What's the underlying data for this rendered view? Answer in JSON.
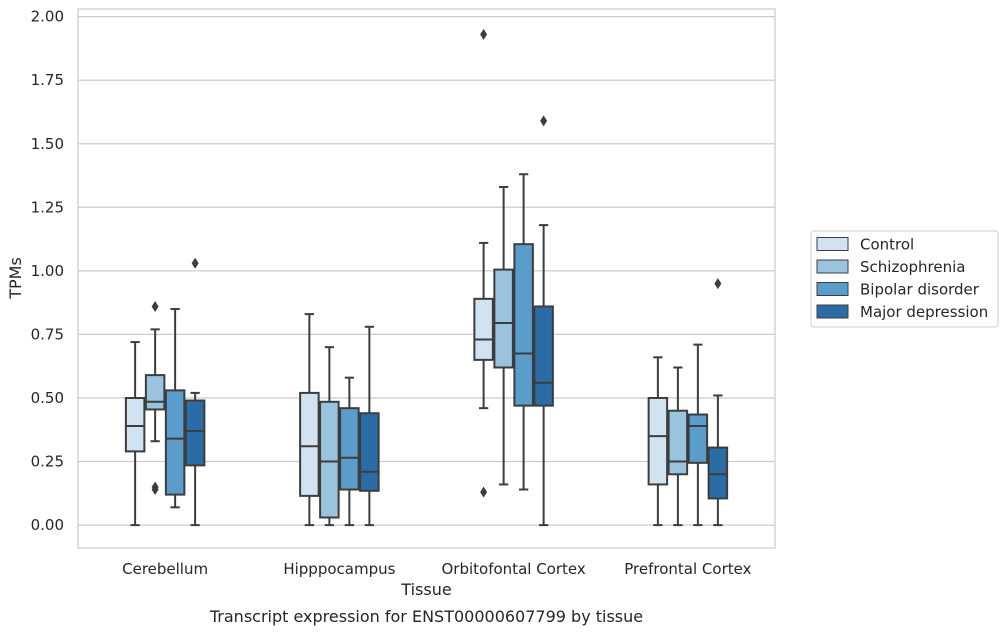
{
  "chart_data": {
    "type": "box",
    "title": "",
    "caption": "Transcript expression for ENST00000607799 by tissue",
    "xlabel": "Tissue",
    "ylabel": "TPMs",
    "ylim": [
      -0.09,
      2.03
    ],
    "yticks": [
      "0.00",
      "0.25",
      "0.50",
      "0.75",
      "1.00",
      "1.25",
      "1.50",
      "1.75",
      "2.00"
    ],
    "grid": "horizontal",
    "legend_position": "right",
    "categories": [
      "Cerebellum",
      "Hipppocampus",
      "Orbitofontal Cortex",
      "Prefrontal Cortex"
    ],
    "series": [
      {
        "name": "Control",
        "color": "#d1e2f1",
        "boxes": [
          {
            "whislo": 0.0,
            "q1": 0.29,
            "med": 0.39,
            "q3": 0.5,
            "whishi": 0.72,
            "fliers": []
          },
          {
            "whislo": 0.0,
            "q1": 0.115,
            "med": 0.31,
            "q3": 0.52,
            "whishi": 0.83,
            "fliers": []
          },
          {
            "whislo": 0.46,
            "q1": 0.65,
            "med": 0.73,
            "q3": 0.89,
            "whishi": 1.11,
            "fliers": [
              1.93,
              0.13
            ]
          },
          {
            "whislo": 0.0,
            "q1": 0.16,
            "med": 0.35,
            "q3": 0.5,
            "whishi": 0.66,
            "fliers": []
          }
        ]
      },
      {
        "name": "Schizophrenia",
        "color": "#9ac4de",
        "boxes": [
          {
            "whislo": 0.33,
            "q1": 0.455,
            "med": 0.485,
            "q3": 0.59,
            "whishi": 0.77,
            "fliers": [
              0.86,
              0.15,
              0.14
            ]
          },
          {
            "whislo": 0.0,
            "q1": 0.03,
            "med": 0.25,
            "q3": 0.485,
            "whishi": 0.7,
            "fliers": []
          },
          {
            "whislo": 0.16,
            "q1": 0.62,
            "med": 0.795,
            "q3": 1.005,
            "whishi": 1.33,
            "fliers": []
          },
          {
            "whislo": 0.0,
            "q1": 0.2,
            "med": 0.25,
            "q3": 0.45,
            "whishi": 0.62,
            "fliers": []
          }
        ]
      },
      {
        "name": "Bipolar disorder",
        "color": "#5a9dcb",
        "boxes": [
          {
            "whislo": 0.07,
            "q1": 0.12,
            "med": 0.34,
            "q3": 0.53,
            "whishi": 0.85,
            "fliers": []
          },
          {
            "whislo": 0.0,
            "q1": 0.14,
            "med": 0.265,
            "q3": 0.46,
            "whishi": 0.58,
            "fliers": []
          },
          {
            "whislo": 0.14,
            "q1": 0.47,
            "med": 0.675,
            "q3": 1.105,
            "whishi": 1.38,
            "fliers": []
          },
          {
            "whislo": 0.0,
            "q1": 0.245,
            "med": 0.39,
            "q3": 0.435,
            "whishi": 0.71,
            "fliers": []
          }
        ]
      },
      {
        "name": "Major depression",
        "color": "#2b6ca7",
        "boxes": [
          {
            "whislo": 0.0,
            "q1": 0.235,
            "med": 0.37,
            "q3": 0.49,
            "whishi": 0.52,
            "fliers": [
              1.03
            ]
          },
          {
            "whislo": 0.0,
            "q1": 0.135,
            "med": 0.21,
            "q3": 0.44,
            "whishi": 0.78,
            "fliers": []
          },
          {
            "whislo": 0.0,
            "q1": 0.47,
            "med": 0.56,
            "q3": 0.86,
            "whishi": 1.18,
            "fliers": [
              1.59
            ]
          },
          {
            "whislo": 0.0,
            "q1": 0.105,
            "med": 0.2,
            "q3": 0.305,
            "whishi": 0.51,
            "fliers": [
              0.95
            ]
          }
        ]
      }
    ]
  }
}
